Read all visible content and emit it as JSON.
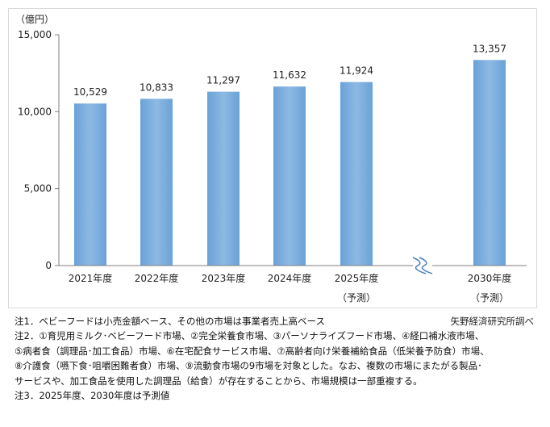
{
  "chart_data": {
    "type": "bar",
    "unit_label": "（億円）",
    "categories": [
      "2021年度",
      "2022年度",
      "2023年度",
      "2024年度",
      "2025年度",
      "2030年度"
    ],
    "category_sublabels": [
      "",
      "",
      "",
      "",
      "（予測）",
      "（予測）"
    ],
    "values": [
      10529,
      10833,
      11297,
      11632,
      11924,
      13357
    ],
    "value_labels": [
      "10,529",
      "10,833",
      "11,297",
      "11,632",
      "11,924",
      "13,357"
    ],
    "y_ticks": [
      "0",
      "5,000",
      "10,000",
      "15,000"
    ],
    "y_tick_values": [
      0,
      5000,
      10000,
      15000
    ],
    "ylim": [
      0,
      15000
    ],
    "axis_break_after": "2025年度",
    "grid": false,
    "legend": "none",
    "bar_color": "#6aa2d8",
    "bar_color_light": "#8db9e4"
  },
  "notes": {
    "lines": [
      "注1．ベビーフードは小売金額ベース、その他の市場は事業者売上高ベース",
      "注2．①育児用ミルク･ベビーフード市場、②完全栄養食市場、③パーソナライズフード市場、④経口補水液市場、",
      "⑤病者食（調理品･加工食品）市場、⑥在宅配食サービス市場、⑦高齢者向け栄養補給食品（低栄養予防食）市場、",
      "⑧介護食（嚥下食･咀嚼困難者食）市場、⑨流動食市場の9市場を対象とした。なお、複数の市場にまたがる製品･",
      "サービスや、加工食品を使用した調理品（給食）が存在することから、市場規模は一部重複する。",
      "注3．2025年度、2030年度は予測値"
    ],
    "source": "矢野経済研究所調べ"
  }
}
